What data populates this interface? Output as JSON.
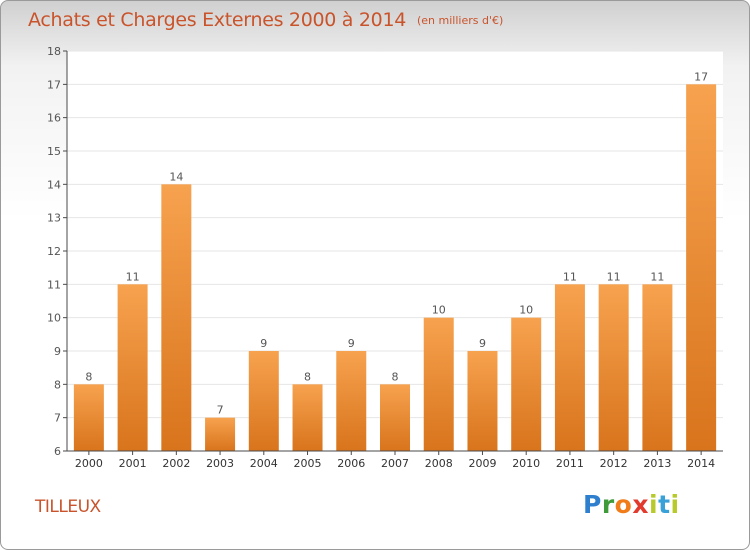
{
  "header": {
    "title": "Achats et Charges Externes 2000 à 2014",
    "unit": "(en milliers d'€)"
  },
  "footer": {
    "commune": "TILLEUX",
    "logo_letters": [
      "P",
      "r",
      "o",
      "x",
      "i",
      "t",
      "i"
    ]
  },
  "colors": {
    "title": "#c9542c",
    "bar_light": "#f7a24f",
    "bar_dark": "#d8741c",
    "axis": "#4a4a4a",
    "grid": "#e6e6e6"
  },
  "chart_data": {
    "type": "bar",
    "title": "Achats et Charges Externes 2000 à 2014",
    "categories": [
      "2000",
      "2001",
      "2002",
      "2003",
      "2004",
      "2005",
      "2006",
      "2007",
      "2008",
      "2009",
      "2010",
      "2011",
      "2012",
      "2013",
      "2014"
    ],
    "values": [
      8,
      11,
      14,
      7,
      9,
      8,
      9,
      8,
      10,
      9,
      10,
      11,
      11,
      11,
      17
    ],
    "ylim": [
      6,
      18
    ],
    "yticks": [
      6,
      7,
      8,
      9,
      10,
      11,
      12,
      13,
      14,
      15,
      16,
      17,
      18
    ],
    "xlabel": "",
    "ylabel": "",
    "grid": true,
    "data_labels": true
  }
}
